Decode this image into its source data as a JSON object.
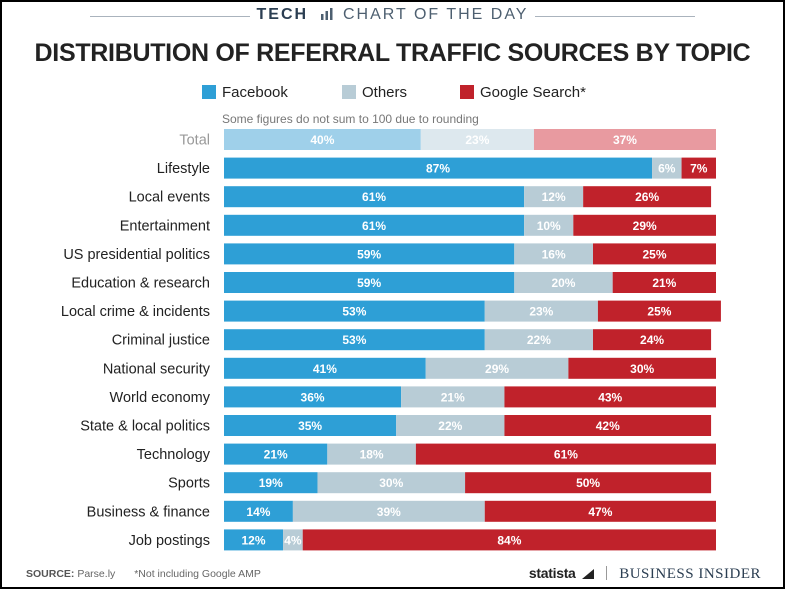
{
  "header": {
    "tech": "TECH",
    "subtitle": "CHART OF THE DAY"
  },
  "colors": {
    "facebook": "#2e9fd6",
    "others": "#b8ccd6",
    "google": "#c0222b",
    "facebook_total": "#9fd0ea",
    "others_total": "#dde8ee",
    "google_total": "#e89aa0",
    "label_dark": "#222222",
    "label_muted": "#999999"
  },
  "legend": [
    {
      "label": "Facebook",
      "color": "#2e9fd6"
    },
    {
      "label": "Others",
      "color": "#b8ccd6"
    },
    {
      "label": "Google Search*",
      "color": "#c0222b"
    }
  ],
  "note": "Some figures do not sum to 100 due to rounding",
  "chart_data": {
    "type": "bar",
    "orientation": "horizontal",
    "stacked": true,
    "title": "DISTRIBUTION OF REFERRAL TRAFFIC SOURCES BY TOPIC",
    "categories": [
      "Total",
      "Lifestyle",
      "Local events",
      "Entertainment",
      "US presidential politics",
      "Education & research",
      "Local crime & incidents",
      "Criminal justice",
      "National security",
      "World economy",
      "State & local politics",
      "Technology",
      "Sports",
      "Business & finance",
      "Job postings"
    ],
    "series": [
      {
        "name": "Facebook",
        "values": [
          40,
          87,
          61,
          61,
          59,
          59,
          53,
          53,
          41,
          36,
          35,
          21,
          19,
          14,
          12
        ]
      },
      {
        "name": "Others",
        "values": [
          23,
          6,
          12,
          10,
          16,
          20,
          23,
          22,
          29,
          21,
          22,
          18,
          30,
          39,
          4
        ]
      },
      {
        "name": "Google Search*",
        "values": [
          37,
          7,
          26,
          29,
          25,
          21,
          25,
          24,
          30,
          43,
          42,
          61,
          50,
          47,
          84
        ]
      }
    ],
    "value_suffix": "%",
    "legend_position": "top",
    "grid": false
  },
  "footer": {
    "source_label": "SOURCE:",
    "source": "Parse.ly",
    "footnote": "*Not including Google AMP"
  },
  "brand": {
    "statista": "statista",
    "business_insider": "BUSINESS INSIDER"
  }
}
